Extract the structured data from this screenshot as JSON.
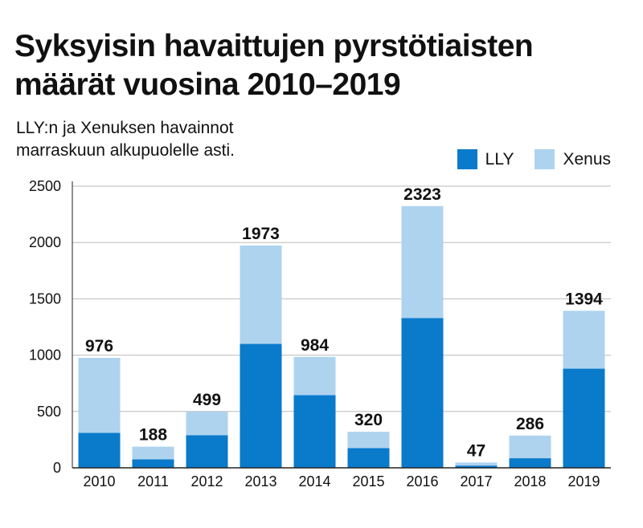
{
  "title": "Syksyisin havaittujen pyrstötiaisten määrät vuosina 2010–2019",
  "subtitle": "LLY:n ja Xenuksen havainnot marraskuun alkupuolelle asti.",
  "colors": {
    "lly": "#0a7acb",
    "xenus": "#aed3ef",
    "grid": "#bbbbbb",
    "axis": "#222222"
  },
  "chart_data": {
    "type": "bar",
    "stacked": true,
    "categories": [
      "2010",
      "2011",
      "2012",
      "2013",
      "2014",
      "2015",
      "2016",
      "2017",
      "2018",
      "2019"
    ],
    "series": [
      {
        "name": "LLY",
        "values": [
          310,
          75,
          290,
          1100,
          645,
          175,
          1330,
          20,
          85,
          880
        ]
      },
      {
        "name": "Xenus",
        "values": [
          666,
          113,
          209,
          873,
          339,
          145,
          993,
          27,
          201,
          514
        ]
      }
    ],
    "totals": [
      976,
      188,
      499,
      1973,
      984,
      320,
      2323,
      47,
      286,
      1394
    ],
    "ylim": [
      0,
      2500
    ],
    "yticks": [
      0,
      500,
      1000,
      1500,
      2000,
      2500
    ],
    "grid": true,
    "legend_position": "top-right"
  }
}
